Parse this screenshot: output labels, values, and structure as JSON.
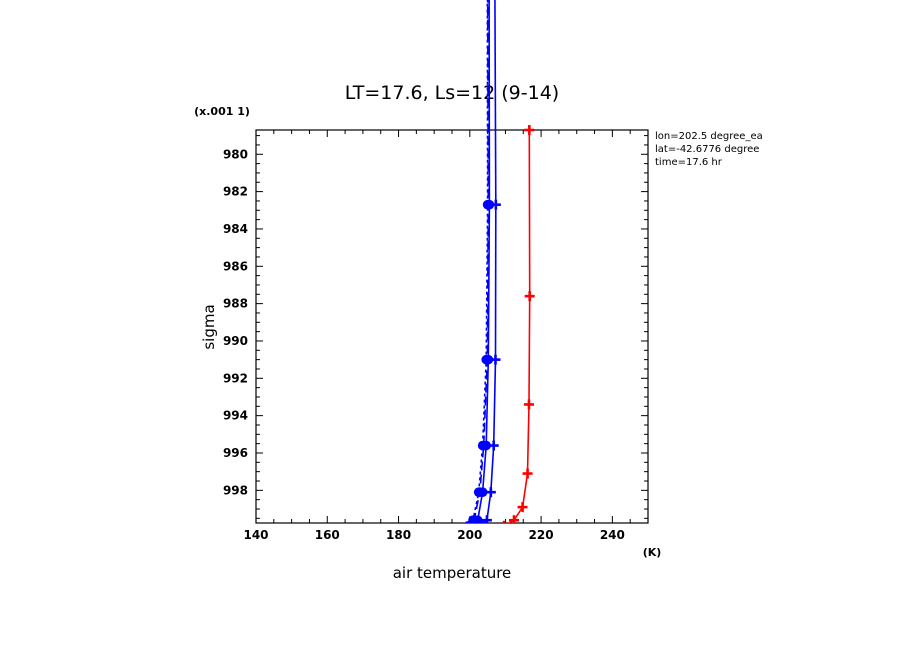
{
  "chart_data": {
    "type": "line",
    "title": "LT=17.6, Ls=12 (9-14)",
    "xlabel": "air temperature",
    "ylabel": "sigma",
    "x_unit": "(K)",
    "y_scale_label": "(x.001 1)",
    "xlim": [
      140,
      250
    ],
    "ylim": [
      999.75,
      978.7
    ],
    "y_inverted": true,
    "x_ticks": [
      140,
      160,
      180,
      200,
      220,
      240
    ],
    "y_ticks": [
      980,
      982,
      984,
      986,
      988,
      990,
      992,
      994,
      996,
      998
    ],
    "info_lines": [
      "lon=202.5 degree_ea",
      "lat=-42.6776 degree",
      "time=17.6 hr"
    ],
    "grid": false,
    "series": [
      {
        "color": "#ff0000",
        "dash": "solid",
        "marker": "plus",
        "x": [
          216.7,
          216.8,
          216.6,
          216.2,
          214.8,
          212.4,
          209.6
        ],
        "y": [
          978.7,
          987.6,
          993.4,
          997.1,
          998.9,
          999.6,
          999.9
        ]
      },
      {
        "color": "#0000ff",
        "dash": "solid",
        "marker": "plus",
        "x": [
          207.0,
          207.3,
          207.2,
          206.7,
          205.9,
          204.8,
          203.8
        ],
        "y": [
          970.0,
          982.7,
          991.0,
          995.6,
          998.1,
          999.6,
          999.9
        ]
      },
      {
        "color": "#0000ff",
        "dash": "solid",
        "marker": "circle",
        "x": [
          205.4,
          205.5,
          205.2,
          204.6,
          203.6,
          202.2,
          201.0
        ],
        "y": [
          970.0,
          982.7,
          991.0,
          995.6,
          998.1,
          999.6,
          999.9
        ]
      },
      {
        "color": "#0000ff",
        "dash": "long",
        "marker": "circle",
        "x": [
          205.0,
          205.2,
          204.9,
          203.9,
          202.8,
          201.2,
          199.9
        ],
        "y": [
          970.0,
          982.7,
          991.0,
          995.6,
          998.1,
          999.6,
          999.9
        ]
      },
      {
        "color": "#0000ff",
        "dash": "short",
        "marker": "circle",
        "x": [
          204.9,
          205.0,
          204.6,
          203.6,
          202.5,
          200.9,
          199.6
        ],
        "y": [
          970.0,
          982.7,
          991.0,
          995.6,
          998.1,
          999.6,
          999.9
        ]
      }
    ]
  }
}
